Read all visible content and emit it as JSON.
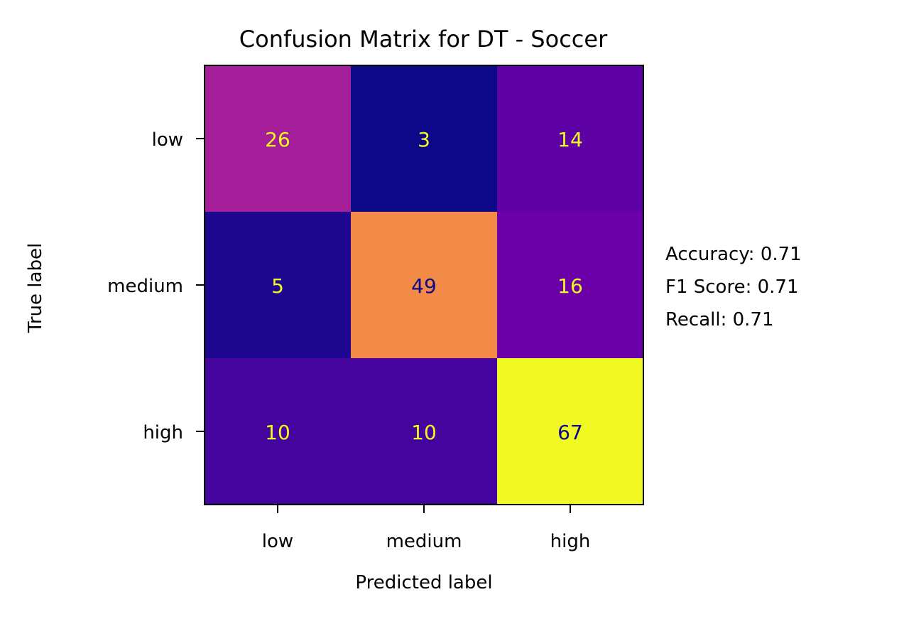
{
  "chart_data": {
    "type": "heatmap",
    "title": "Confusion Matrix for DT - Soccer",
    "xlabel": "Predicted label",
    "ylabel": "True label",
    "x_categories": [
      "low",
      "medium",
      "high"
    ],
    "y_categories": [
      "low",
      "medium",
      "high"
    ],
    "values": [
      [
        26,
        3,
        14
      ],
      [
        5,
        49,
        16
      ],
      [
        10,
        10,
        67
      ]
    ],
    "colormap": "plasma",
    "value_range": [
      3,
      67
    ],
    "text_colors": {
      "on_dark": "#f0f921",
      "on_light": "#0d0887"
    },
    "grid": false,
    "annotations": [
      "Accuracy: 0.71",
      "F1 Score: 0.71",
      "Recall: 0.71"
    ]
  }
}
